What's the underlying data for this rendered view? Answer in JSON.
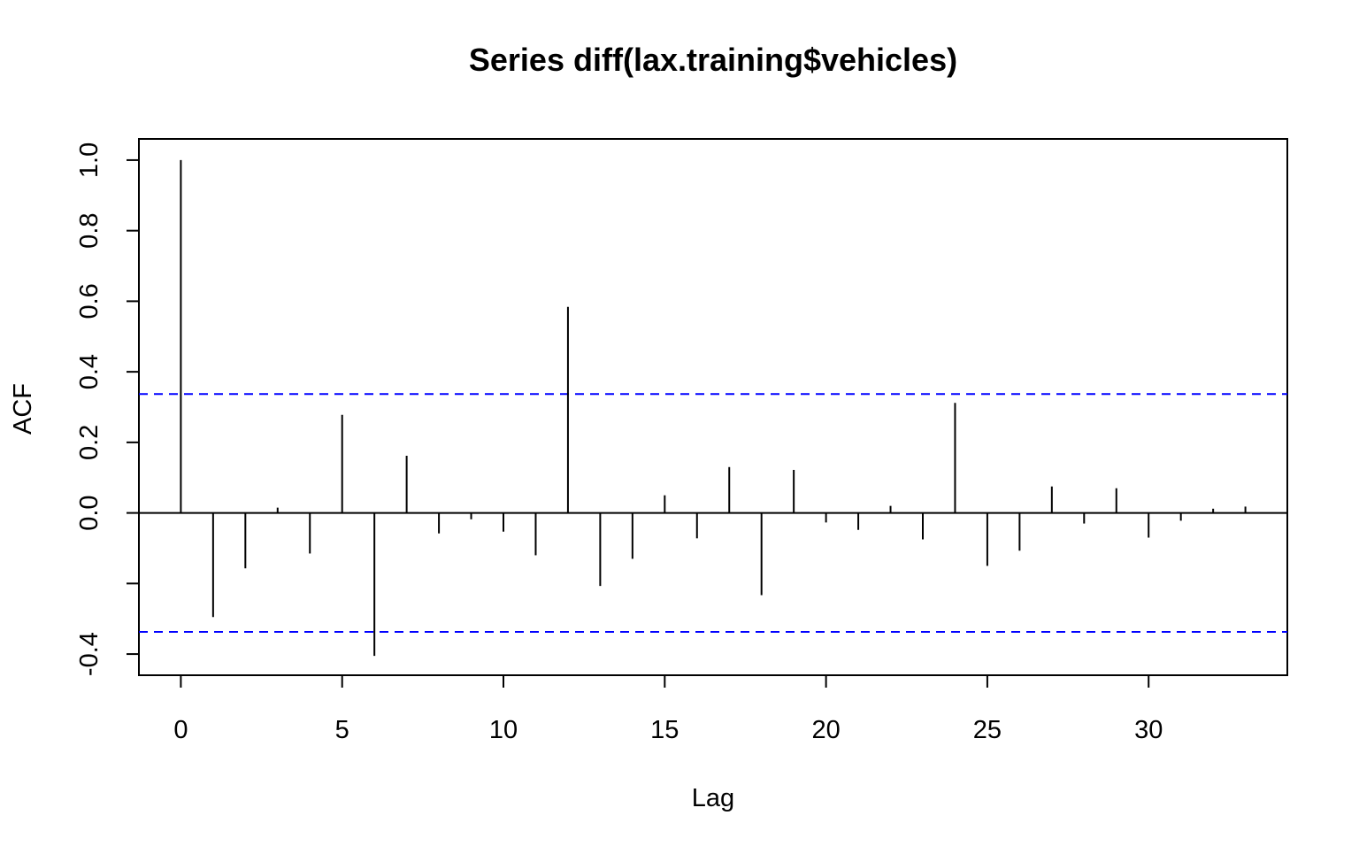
{
  "chart_data": {
    "type": "bar",
    "title": "Series  diff(lax.training$vehicles)",
    "xlabel": "Lag",
    "ylabel": "ACF",
    "xlim": [
      -1.3,
      34.3
    ],
    "ylim": [
      -0.46,
      1.06
    ],
    "x_ticks": [
      0,
      5,
      10,
      15,
      20,
      25,
      30
    ],
    "x_tick_labels": [
      "0",
      "5",
      "10",
      "15",
      "20",
      "25",
      "30"
    ],
    "y_ticks": [
      -0.4,
      -0.2,
      0.0,
      0.2,
      0.4,
      0.6,
      0.8,
      1.0
    ],
    "y_tick_labels": [
      "-0.4",
      "",
      "0.0",
      "0.2",
      "0.4",
      "0.6",
      "0.8",
      "1.0"
    ],
    "lags": [
      0,
      1,
      2,
      3,
      4,
      5,
      6,
      7,
      8,
      9,
      10,
      11,
      12,
      13,
      14,
      15,
      16,
      17,
      18,
      19,
      20,
      21,
      22,
      23,
      24,
      25,
      26,
      27,
      28,
      29,
      30,
      31,
      32,
      33
    ],
    "values": [
      1.0,
      -0.295,
      -0.157,
      0.015,
      -0.115,
      0.278,
      -0.405,
      0.162,
      -0.058,
      -0.018,
      -0.053,
      -0.12,
      0.584,
      -0.207,
      -0.13,
      0.05,
      -0.072,
      0.13,
      -0.233,
      0.122,
      -0.027,
      -0.048,
      0.02,
      -0.075,
      0.312,
      -0.15,
      -0.107,
      0.075,
      -0.03,
      0.07,
      -0.07,
      -0.022,
      0.012,
      0.018
    ],
    "confidence_band": 0.337,
    "colors": {
      "bars": "#000000",
      "zero_line": "#000000",
      "confidence_band": "#0000ff",
      "frame": "#000000"
    },
    "grid": false,
    "legend": "none"
  }
}
